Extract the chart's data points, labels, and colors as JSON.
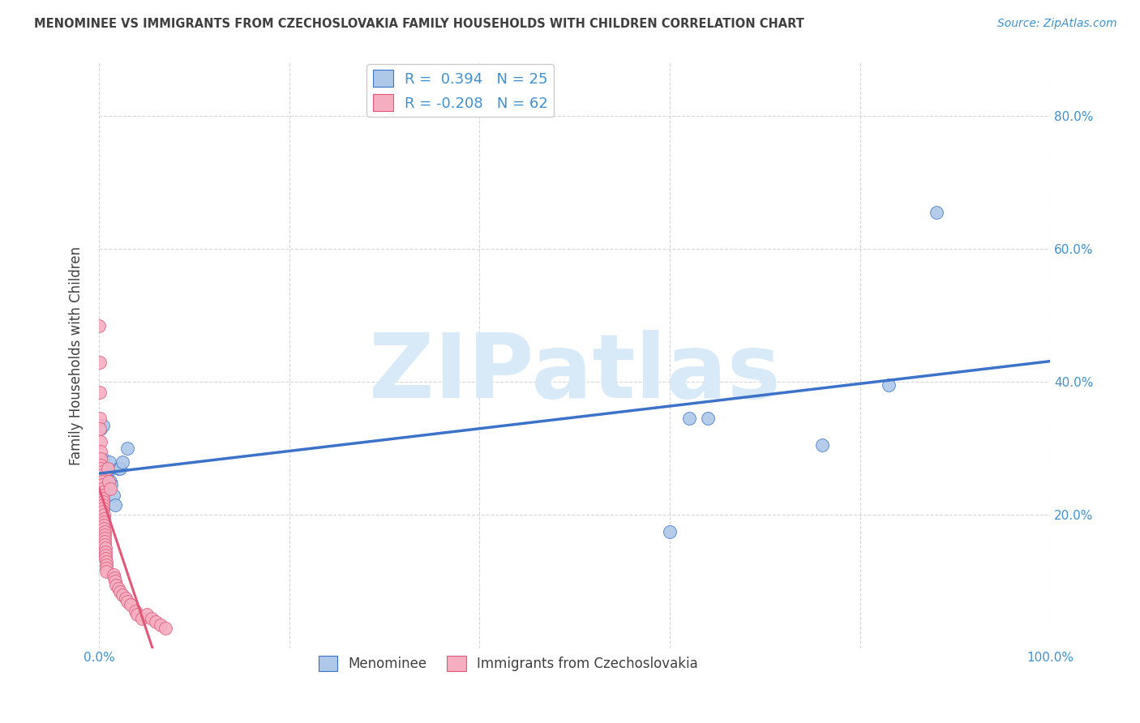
{
  "title": "MENOMINEE VS IMMIGRANTS FROM CZECHOSLOVAKIA FAMILY HOUSEHOLDS WITH CHILDREN CORRELATION CHART",
  "source": "Source: ZipAtlas.com",
  "ylabel": "Family Households with Children",
  "watermark": "ZIPatlas",
  "legend_blue_r": "0.394",
  "legend_blue_n": "25",
  "legend_pink_r": "-0.208",
  "legend_pink_n": "62",
  "legend_label_blue": "Menominee",
  "legend_label_pink": "Immigrants from Czechoslovakia",
  "blue_color": "#adc8e8",
  "pink_color": "#f5aec0",
  "blue_line_color": "#3c72c8",
  "pink_line_color": "#e05878",
  "pink_dashed_color": "#e0b0be",
  "blue_scatter": [
    [
      0.002,
      0.33
    ],
    [
      0.003,
      0.28
    ],
    [
      0.004,
      0.335
    ],
    [
      0.004,
      0.285
    ],
    [
      0.005,
      0.265
    ],
    [
      0.006,
      0.245
    ],
    [
      0.007,
      0.24
    ],
    [
      0.008,
      0.255
    ],
    [
      0.009,
      0.265
    ],
    [
      0.01,
      0.27
    ],
    [
      0.011,
      0.28
    ],
    [
      0.012,
      0.25
    ],
    [
      0.013,
      0.245
    ],
    [
      0.015,
      0.23
    ],
    [
      0.017,
      0.215
    ],
    [
      0.02,
      0.27
    ],
    [
      0.022,
      0.27
    ],
    [
      0.025,
      0.28
    ],
    [
      0.03,
      0.3
    ],
    [
      0.6,
      0.175
    ],
    [
      0.62,
      0.345
    ],
    [
      0.64,
      0.345
    ],
    [
      0.76,
      0.305
    ],
    [
      0.83,
      0.395
    ],
    [
      0.88,
      0.655
    ]
  ],
  "pink_scatter": [
    [
      0.0,
      0.485
    ],
    [
      0.001,
      0.43
    ],
    [
      0.001,
      0.385
    ],
    [
      0.001,
      0.345
    ],
    [
      0.001,
      0.33
    ],
    [
      0.002,
      0.31
    ],
    [
      0.002,
      0.295
    ],
    [
      0.002,
      0.285
    ],
    [
      0.002,
      0.275
    ],
    [
      0.002,
      0.27
    ],
    [
      0.003,
      0.265
    ],
    [
      0.003,
      0.26
    ],
    [
      0.003,
      0.255
    ],
    [
      0.003,
      0.25
    ],
    [
      0.003,
      0.245
    ],
    [
      0.003,
      0.24
    ],
    [
      0.003,
      0.235
    ],
    [
      0.004,
      0.23
    ],
    [
      0.004,
      0.225
    ],
    [
      0.004,
      0.22
    ],
    [
      0.004,
      0.215
    ],
    [
      0.004,
      0.21
    ],
    [
      0.004,
      0.205
    ],
    [
      0.005,
      0.2
    ],
    [
      0.005,
      0.195
    ],
    [
      0.005,
      0.19
    ],
    [
      0.005,
      0.185
    ],
    [
      0.005,
      0.18
    ],
    [
      0.006,
      0.175
    ],
    [
      0.006,
      0.17
    ],
    [
      0.006,
      0.165
    ],
    [
      0.006,
      0.16
    ],
    [
      0.006,
      0.155
    ],
    [
      0.007,
      0.15
    ],
    [
      0.007,
      0.145
    ],
    [
      0.007,
      0.14
    ],
    [
      0.007,
      0.135
    ],
    [
      0.008,
      0.13
    ],
    [
      0.008,
      0.125
    ],
    [
      0.008,
      0.12
    ],
    [
      0.008,
      0.115
    ],
    [
      0.009,
      0.27
    ],
    [
      0.01,
      0.25
    ],
    [
      0.012,
      0.24
    ],
    [
      0.015,
      0.11
    ],
    [
      0.016,
      0.105
    ],
    [
      0.017,
      0.1
    ],
    [
      0.018,
      0.095
    ],
    [
      0.02,
      0.09
    ],
    [
      0.022,
      0.085
    ],
    [
      0.025,
      0.08
    ],
    [
      0.028,
      0.075
    ],
    [
      0.03,
      0.07
    ],
    [
      0.033,
      0.065
    ],
    [
      0.038,
      0.055
    ],
    [
      0.04,
      0.05
    ],
    [
      0.045,
      0.045
    ],
    [
      0.05,
      0.05
    ],
    [
      0.055,
      0.045
    ],
    [
      0.06,
      0.04
    ],
    [
      0.065,
      0.035
    ],
    [
      0.07,
      0.03
    ]
  ],
  "xlim": [
    0.0,
    1.0
  ],
  "ylim": [
    0.0,
    0.88
  ],
  "background_color": "#ffffff",
  "title_color": "#404040",
  "axis_color": "#4090d0",
  "grid_color": "#cccccc",
  "watermark_color": "#d8eaf8"
}
